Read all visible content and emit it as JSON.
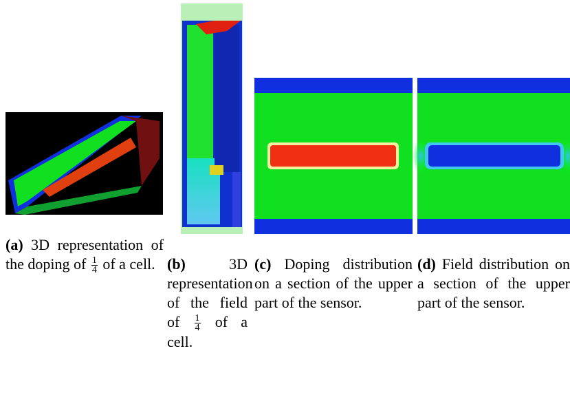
{
  "subfigures": [
    {
      "label": "(a)",
      "text_before": "3D representation of the doping of",
      "fraction": {
        "numerator": "1",
        "denominator": "4"
      },
      "text_after": "of a cell."
    },
    {
      "label": "(b)",
      "text_before": "3D representation of the field of",
      "fraction": {
        "numerator": "1",
        "denominator": "4"
      },
      "text_after": "of a cell."
    },
    {
      "label": "(c)",
      "text": "Doping distribution on a section of the upper part of the sensor."
    },
    {
      "label": "(d)",
      "text": "Field distribution on a section of the upper part of the sensor."
    }
  ]
}
